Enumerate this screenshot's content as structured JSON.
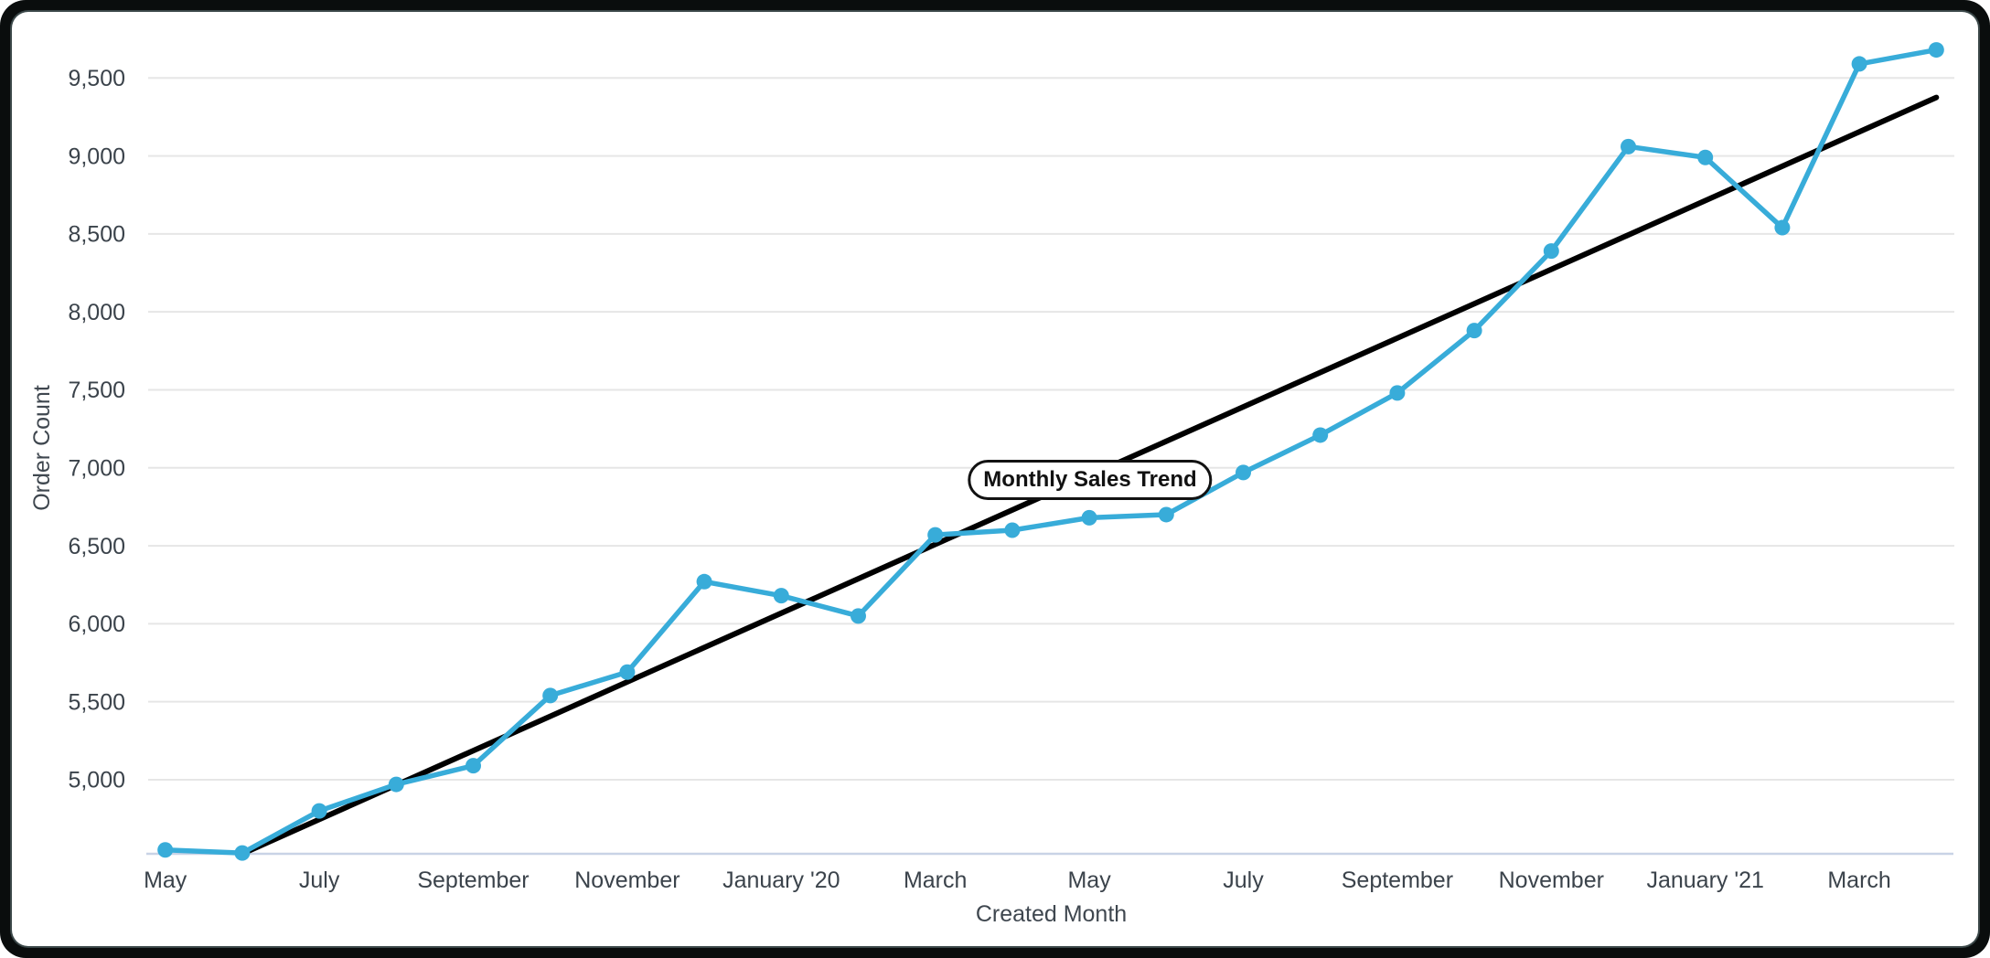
{
  "window": {
    "frame_color": "#0a0d0d",
    "card_color": "#ffffff"
  },
  "chart_data": {
    "type": "line",
    "xlabel": "Created Month",
    "ylabel": "Order Count",
    "annotation_label": "Monthly Sales Trend",
    "categories": [
      "May '19",
      "June '19",
      "July '19",
      "August '19",
      "September '19",
      "October '19",
      "November '19",
      "December '19",
      "January '20",
      "February '20",
      "March '20",
      "April '20",
      "May '20",
      "June '20",
      "July '20",
      "August '20",
      "September '20",
      "October '20",
      "November '20",
      "December '20",
      "January '21",
      "February '21",
      "March '21",
      "April '21"
    ],
    "series": [
      {
        "name": "Order Count",
        "color": "#38acd9",
        "values": [
          4550,
          4530,
          4800,
          4970,
          5090,
          5540,
          5690,
          6270,
          6180,
          6050,
          6570,
          6600,
          6680,
          6700,
          6970,
          7210,
          7480,
          7880,
          8390,
          9060,
          8990,
          8540,
          9590,
          9680
        ]
      }
    ],
    "trendline": {
      "color": "#000000",
      "start_index": 1,
      "start_value": 4525,
      "end_index": 23,
      "end_value": 9375
    },
    "x_tick_labels": [
      {
        "index": 0,
        "label": "May"
      },
      {
        "index": 2,
        "label": "July"
      },
      {
        "index": 4,
        "label": "September"
      },
      {
        "index": 6,
        "label": "November"
      },
      {
        "index": 8,
        "label": "January '20"
      },
      {
        "index": 10,
        "label": "March"
      },
      {
        "index": 12,
        "label": "May"
      },
      {
        "index": 14,
        "label": "July"
      },
      {
        "index": 16,
        "label": "September"
      },
      {
        "index": 18,
        "label": "November"
      },
      {
        "index": 20,
        "label": "January '21"
      },
      {
        "index": 22,
        "label": "March"
      }
    ],
    "y_ticks": [
      {
        "value": 5000,
        "label": "5,000"
      },
      {
        "value": 5500,
        "label": "5,500"
      },
      {
        "value": 6000,
        "label": "6,000"
      },
      {
        "value": 6500,
        "label": "6,500"
      },
      {
        "value": 7000,
        "label": "7,000"
      },
      {
        "value": 7500,
        "label": "7,500"
      },
      {
        "value": 8000,
        "label": "8,000"
      },
      {
        "value": 8500,
        "label": "8,500"
      },
      {
        "value": 9000,
        "label": "9,000"
      },
      {
        "value": 9500,
        "label": "9,500"
      }
    ],
    "ylim": [
      4525,
      9824
    ],
    "grid": "horizontal",
    "legend": "none",
    "colors": {
      "grid_line": "#e6e6e6",
      "baseline": "#c9d3e6",
      "tick_text": "#3b434b",
      "axis_title_text": "#3f474f"
    }
  }
}
